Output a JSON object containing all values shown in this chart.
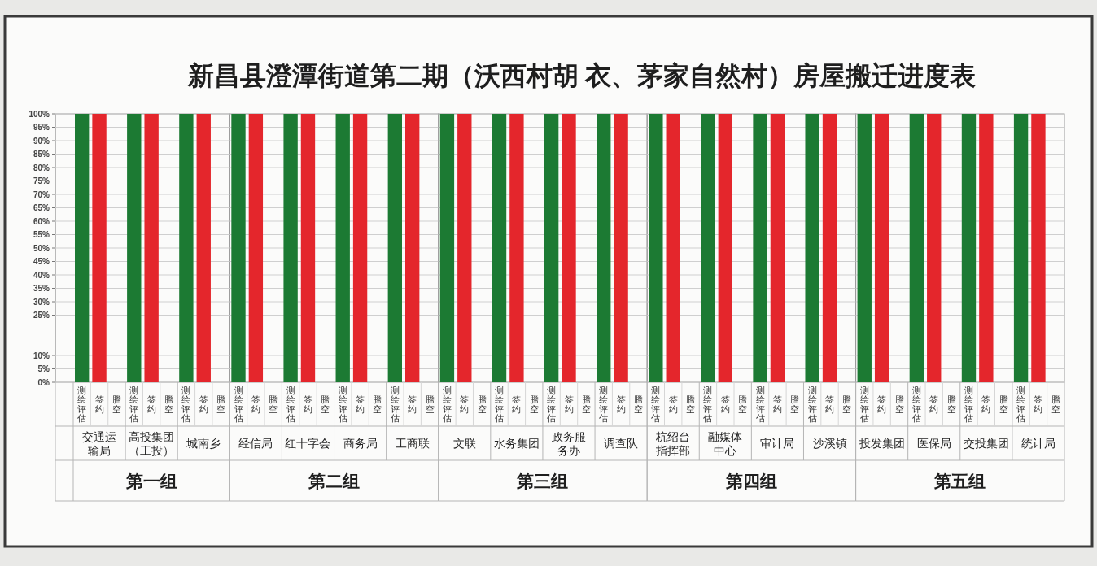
{
  "chart_data": [
    {
      "type": "bar",
      "title": "新昌县澄潭街道第二期（沃西村胡 衣、茅家自然村）房屋搬迁进度表",
      "xlabel": "第一组",
      "categories": [
        "交通运输局",
        "高投集团（工投）",
        "城南乡"
      ],
      "series": [
        {
          "name": "测绘评估",
          "color": "#1c7a33",
          "values": [
            100,
            100,
            100
          ]
        },
        {
          "name": "签约",
          "color": "#e4262c",
          "values": [
            100,
            100,
            100
          ]
        },
        {
          "name": "腾空",
          "values": [
            null,
            null,
            null
          ]
        }
      ],
      "ylim": [
        0,
        100
      ],
      "yticks": [
        {
          "value": 0,
          "label": "0%"
        },
        {
          "value": 5,
          "label": "5%"
        },
        {
          "value": 10,
          "label": "10%"
        },
        {
          "value": 25,
          "label": "25%"
        },
        {
          "value": 30,
          "label": "30%"
        },
        {
          "value": 35,
          "label": "35%"
        },
        {
          "value": 40,
          "label": "40%"
        },
        {
          "value": 45,
          "label": "45%"
        },
        {
          "value": 50,
          "label": "50%"
        },
        {
          "value": 55,
          "label": "55%"
        },
        {
          "value": 60,
          "label": "60%"
        },
        {
          "value": 65,
          "label": "65%"
        },
        {
          "value": 70,
          "label": "70%"
        },
        {
          "value": 75,
          "label": "75%"
        },
        {
          "value": 80,
          "label": "80%"
        },
        {
          "value": 85,
          "label": "85%"
        },
        {
          "value": 90,
          "label": "90%"
        },
        {
          "value": 95,
          "label": "95%"
        },
        {
          "value": 100,
          "label": "100%"
        }
      ],
      "grid": "y"
    },
    {
      "type": "bar",
      "xlabel": "第二组",
      "categories": [
        "经信局",
        "红十字会",
        "商务局",
        "工商联"
      ],
      "series": [
        {
          "name": "测绘评估",
          "color": "#1c7a33",
          "values": [
            100,
            100,
            100,
            100
          ]
        },
        {
          "name": "签约",
          "color": "#e4262c",
          "values": [
            100,
            100,
            100,
            100
          ]
        },
        {
          "name": "腾空",
          "values": [
            null,
            null,
            null,
            null
          ]
        }
      ],
      "ylim": [
        0,
        100
      ],
      "yticks": [
        0,
        5,
        10,
        25,
        30,
        35,
        40,
        45,
        50,
        55,
        60,
        65,
        70,
        75,
        80,
        85,
        90,
        95,
        100
      ],
      "grid": "y",
      "tick_labels": "x"
    },
    {
      "type": "bar",
      "xlabel": "第三组",
      "categories": [
        "文联",
        "水务集团",
        "政务服务办",
        "调查队"
      ],
      "series": [
        {
          "name": "测绘评估",
          "color": "#1c7a33",
          "values": [
            100,
            100,
            100,
            100
          ]
        },
        {
          "name": "签约",
          "color": "#e4262c",
          "values": [
            100,
            100,
            100,
            100
          ]
        },
        {
          "name": "腾空",
          "values": [
            null,
            null,
            null,
            null
          ]
        }
      ],
      "ylim": [
        0,
        100
      ],
      "yticks": [
        0,
        5,
        10,
        25,
        30,
        35,
        40,
        45,
        50,
        55,
        60,
        65,
        70,
        75,
        80,
        85,
        90,
        95,
        100
      ],
      "grid": "y",
      "tick_labels": "x"
    },
    {
      "type": "bar",
      "xlabel": "第四组",
      "categories": [
        "杭绍台指挥部",
        "融媒体中心",
        "审计局",
        "沙溪镇"
      ],
      "series": [
        {
          "name": "测绘评估",
          "color": "#1c7a33",
          "values": [
            100,
            100,
            100,
            100
          ]
        },
        {
          "name": "签约",
          "color": "#e4262c",
          "values": [
            100,
            100,
            100,
            100
          ]
        },
        {
          "name": "腾空",
          "values": [
            null,
            null,
            null,
            null
          ]
        }
      ],
      "ylim": [
        0,
        100
      ],
      "yticks": [
        0,
        5,
        10,
        25,
        30,
        35,
        40,
        45,
        50,
        55,
        60,
        65,
        70,
        75,
        80,
        85,
        90,
        95,
        100
      ],
      "grid": "y",
      "tick_labels": "x"
    },
    {
      "type": "bar",
      "xlabel": "第五组",
      "categories": [
        "投发集团",
        "医保局",
        "交投集团",
        "统计局"
      ],
      "series": [
        {
          "name": "测绘评估",
          "color": "#1c7a33",
          "values": [
            100,
            100,
            100,
            100
          ]
        },
        {
          "name": "签约",
          "color": "#e4262c",
          "values": [
            100,
            100,
            100,
            100
          ]
        },
        {
          "name": "腾空",
          "values": [
            null,
            null,
            null,
            null
          ]
        }
      ],
      "ylim": [
        0,
        100
      ],
      "yticks": [
        0,
        5,
        10,
        25,
        30,
        35,
        40,
        45,
        50,
        55,
        60,
        65,
        70,
        75,
        80,
        85,
        90,
        95,
        100
      ],
      "grid": "y",
      "tick_labels": "x"
    }
  ]
}
